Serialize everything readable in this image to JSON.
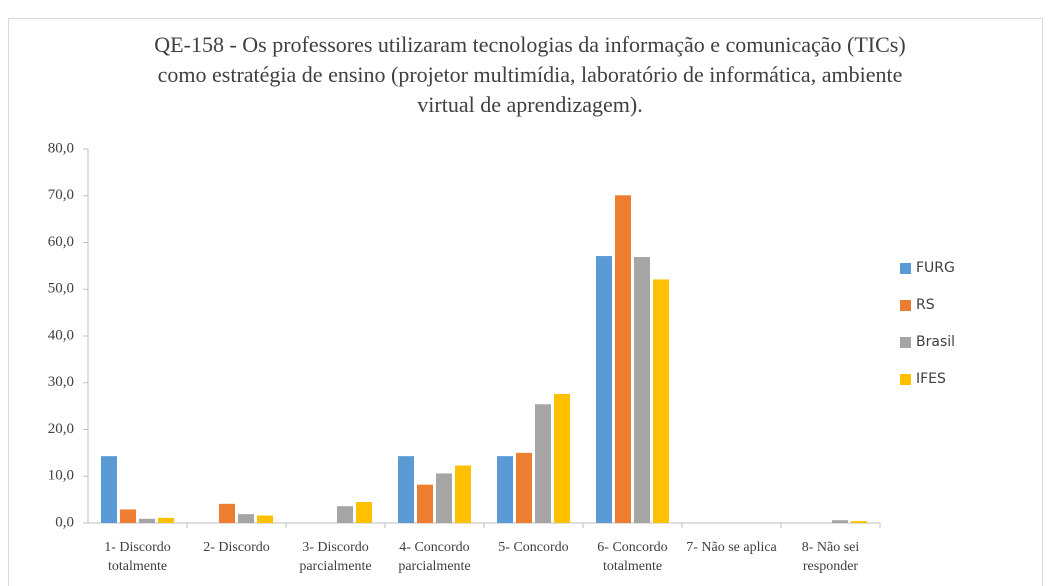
{
  "chart_data": {
    "type": "bar",
    "title": "QE-158 - Os professores utilizaram tecnologias da informação e comunicação (TICs) como estratégia de ensino (projetor multimídia, laboratório de informática, ambiente virtual de aprendizagem).",
    "categories": [
      "1- Discordo totalmente",
      "2- Discordo",
      "3- Discordo parcialmente",
      "4- Concordo parcialmente",
      "5- Concordo",
      "6- Concordo totalmente",
      "7- Não se aplica",
      "8- Não sei responder"
    ],
    "series": [
      {
        "name": "FURG",
        "color": "#5b9bd5",
        "values": [
          14.3,
          0,
          0,
          14.3,
          14.3,
          57.1,
          0,
          0
        ]
      },
      {
        "name": "RS",
        "color": "#ed7d31",
        "values": [
          2.9,
          4.1,
          0,
          8.2,
          15.0,
          70.1,
          0,
          0
        ]
      },
      {
        "name": "Brasil",
        "color": "#a5a5a5",
        "values": [
          0.9,
          1.9,
          3.6,
          10.6,
          25.4,
          56.9,
          0,
          0.6
        ]
      },
      {
        "name": "IFES",
        "color": "#ffc000",
        "values": [
          1.1,
          1.6,
          4.5,
          12.3,
          27.6,
          52.1,
          0,
          0.4
        ]
      }
    ],
    "ylim": [
      0,
      80
    ],
    "yticks": [
      {
        "value": 0,
        "label": "0,0"
      },
      {
        "value": 10,
        "label": "10,0"
      },
      {
        "value": 20,
        "label": "20,0"
      },
      {
        "value": 30,
        "label": "30,0"
      },
      {
        "value": 40,
        "label": "40,0"
      },
      {
        "value": 50,
        "label": "50,0"
      },
      {
        "value": 60,
        "label": "60,0"
      },
      {
        "value": 70,
        "label": "70,0"
      },
      {
        "value": 80,
        "label": "80,0"
      }
    ],
    "grid": false,
    "legend": "right"
  }
}
